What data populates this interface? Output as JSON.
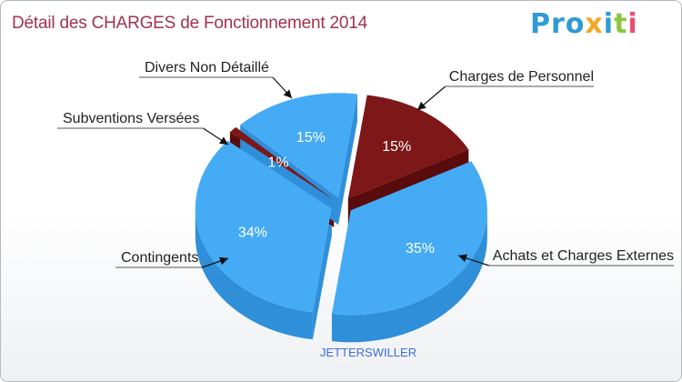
{
  "header": {
    "title": "Détail des CHARGES de Fonctionnement 2014"
  },
  "logo": {
    "letters": [
      {
        "ch": "P",
        "color": "#2f9ad6"
      },
      {
        "ch": "r",
        "color": "#2f9ad6"
      },
      {
        "ch": "o",
        "color": "#2f9ad6"
      },
      {
        "ch": "x",
        "color": "#f5a623"
      },
      {
        "ch": "i",
        "color": "#2f9ad6"
      },
      {
        "ch": "t",
        "color": "#8cc63f"
      },
      {
        "ch": "i",
        "color": "#e94e77"
      }
    ]
  },
  "colors": {
    "blue_top": "#45abf5",
    "blue_side": "#2f8fd9",
    "red_top": "#7d1718",
    "red_side": "#5a0c0c",
    "pct_text": "#ffffff",
    "label_text": "#222222",
    "footer_text": "#3f6cdb"
  },
  "chart_data": {
    "type": "pie",
    "title": "Détail des CHARGES de Fonctionnement 2014",
    "subtitle": "JETTERSWILLER",
    "slices": [
      {
        "label": "Charges de Personnel",
        "value": 15,
        "pct_label": "15%",
        "color": "red"
      },
      {
        "label": "Achats et Charges Externes",
        "value": 35,
        "pct_label": "35%",
        "color": "blue"
      },
      {
        "label": "Contingents",
        "value": 34,
        "pct_label": "34%",
        "color": "blue"
      },
      {
        "label": "Subventions Versées",
        "value": 1,
        "pct_label": "1%",
        "color": "red"
      },
      {
        "label": "Divers Non Détaillé",
        "value": 15,
        "pct_label": "15%",
        "color": "blue"
      }
    ]
  }
}
